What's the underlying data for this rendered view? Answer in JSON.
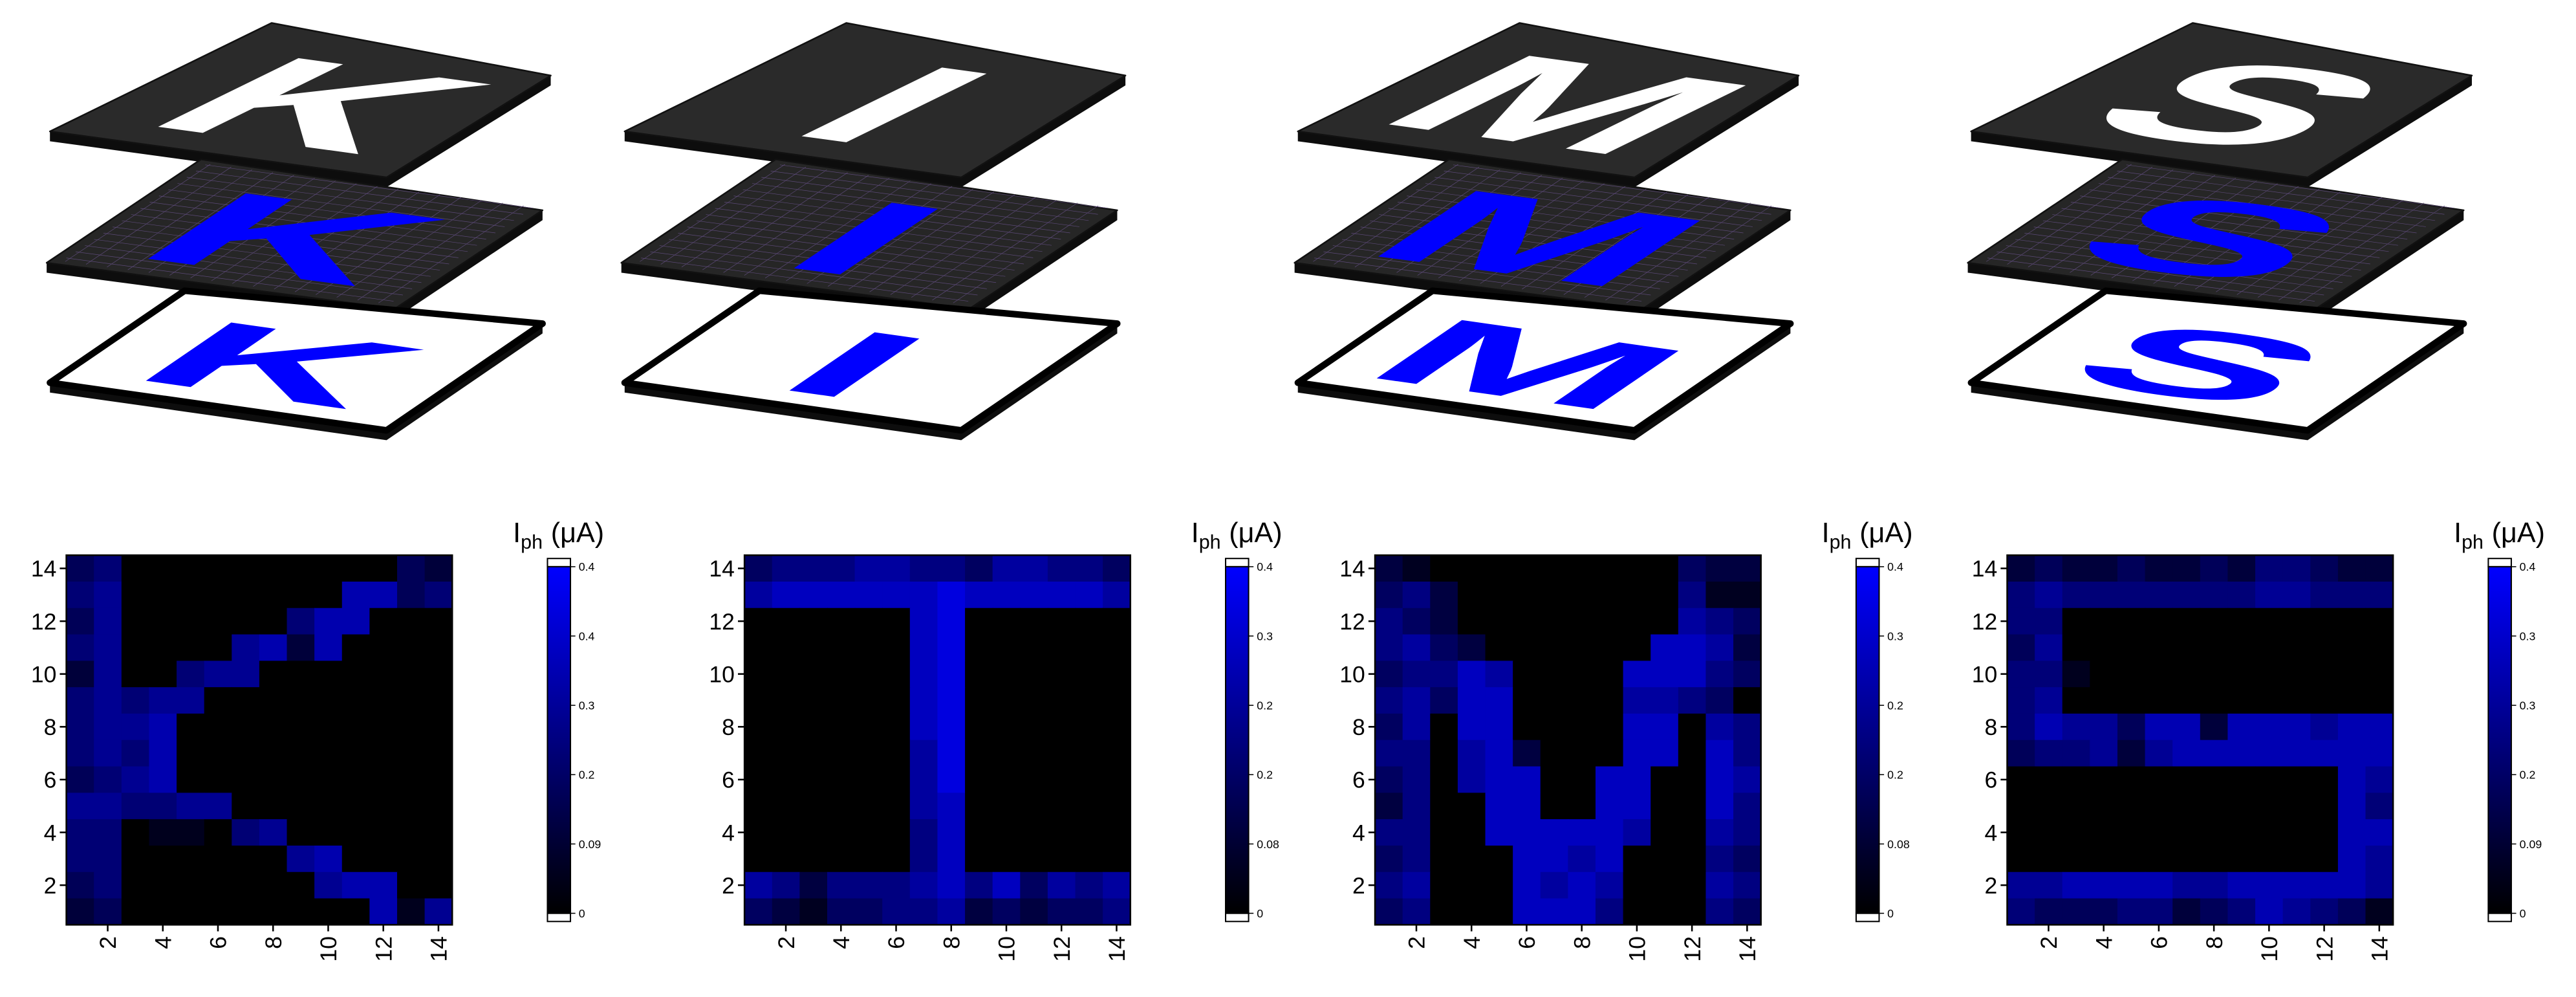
{
  "illustrations": [
    {
      "letter": "K"
    },
    {
      "letter": "I"
    },
    {
      "letter": "M"
    },
    {
      "letter": "S"
    }
  ],
  "chart_data": [
    {
      "type": "heatmap",
      "x": [
        1,
        2,
        3,
        4,
        5,
        6,
        7,
        8,
        9,
        10,
        11,
        12,
        13,
        14
      ],
      "y": [
        14,
        13,
        12,
        11,
        10,
        9,
        8,
        7,
        6,
        5,
        4,
        3,
        2,
        1
      ],
      "z": [
        [
          0.15,
          0.2,
          0,
          0,
          0,
          0,
          0,
          0,
          0,
          0,
          0,
          0,
          0.15,
          0.1
        ],
        [
          0.2,
          0.25,
          0,
          0,
          0,
          0,
          0,
          0,
          0,
          0,
          0.3,
          0.3,
          0.15,
          0.2
        ],
        [
          0.15,
          0.25,
          0,
          0,
          0,
          0,
          0,
          0,
          0.2,
          0.3,
          0.3,
          0,
          0,
          0
        ],
        [
          0.2,
          0.25,
          0,
          0,
          0,
          0,
          0.25,
          0.3,
          0.1,
          0.3,
          0,
          0,
          0,
          0
        ],
        [
          0.1,
          0.25,
          0,
          0,
          0.2,
          0.25,
          0.25,
          0,
          0,
          0,
          0,
          0,
          0,
          0
        ],
        [
          0.2,
          0.25,
          0.2,
          0.25,
          0.25,
          0,
          0,
          0,
          0,
          0,
          0,
          0,
          0,
          0
        ],
        [
          0.2,
          0.25,
          0.25,
          0.3,
          0,
          0,
          0,
          0,
          0,
          0,
          0,
          0,
          0,
          0
        ],
        [
          0.2,
          0.25,
          0.2,
          0.3,
          0,
          0,
          0,
          0,
          0,
          0,
          0,
          0,
          0,
          0
        ],
        [
          0.15,
          0.2,
          0.25,
          0.3,
          0,
          0,
          0,
          0,
          0,
          0,
          0,
          0,
          0,
          0
        ],
        [
          0.25,
          0.25,
          0.2,
          0.2,
          0.25,
          0.25,
          0,
          0,
          0,
          0,
          0,
          0,
          0,
          0
        ],
        [
          0.2,
          0.2,
          0,
          0.05,
          0.05,
          0,
          0.2,
          0.25,
          0,
          0,
          0,
          0,
          0,
          0
        ],
        [
          0.2,
          0.2,
          0,
          0,
          0,
          0,
          0,
          0,
          0.25,
          0.3,
          0,
          0,
          0,
          0
        ],
        [
          0.15,
          0.2,
          0,
          0,
          0,
          0,
          0,
          0,
          0,
          0.25,
          0.3,
          0.3,
          0,
          0
        ],
        [
          0.1,
          0.15,
          0,
          0,
          0,
          0,
          0,
          0,
          0,
          0,
          0,
          0.3,
          0.05,
          0.25
        ]
      ],
      "xlim": [
        0.5,
        14.5
      ],
      "ylim": [
        0.5,
        14.5
      ],
      "xticks": [
        2,
        4,
        6,
        8,
        10,
        12,
        14
      ],
      "yticks": [
        2,
        4,
        6,
        8,
        10,
        12,
        14
      ],
      "colorbar": {
        "label": {
          "main": "I",
          "sub": "ph",
          "unit": "(μA)"
        },
        "clim": [
          0,
          0.44
        ],
        "ticks": [
          {
            "value": 0,
            "label": "0"
          },
          {
            "value": 0.088,
            "label": "0.09"
          },
          {
            "value": 0.176,
            "label": "0.2"
          },
          {
            "value": 0.264,
            "label": "0.3"
          },
          {
            "value": 0.352,
            "label": "0.4"
          },
          {
            "value": 0.44,
            "label": "0.4"
          }
        ],
        "colormap": [
          "#000000",
          "#0000ff"
        ],
        "extend_color": "#ffffff"
      }
    },
    {
      "type": "heatmap",
      "x": [
        1,
        2,
        3,
        4,
        5,
        6,
        7,
        8,
        9,
        10,
        11,
        12,
        13,
        14
      ],
      "y": [
        14,
        13,
        12,
        11,
        10,
        9,
        8,
        7,
        6,
        5,
        4,
        3,
        2,
        1
      ],
      "z": [
        [
          0.15,
          0.2,
          0.2,
          0.2,
          0.25,
          0.25,
          0.2,
          0.2,
          0.15,
          0.25,
          0.25,
          0.2,
          0.2,
          0.15
        ],
        [
          0.25,
          0.3,
          0.3,
          0.3,
          0.3,
          0.3,
          0.3,
          0.35,
          0.3,
          0.3,
          0.3,
          0.3,
          0.3,
          0.25
        ],
        [
          0,
          0,
          0,
          0,
          0,
          0,
          0.3,
          0.35,
          0,
          0,
          0,
          0,
          0,
          0
        ],
        [
          0,
          0,
          0,
          0,
          0,
          0,
          0.3,
          0.35,
          0,
          0,
          0,
          0,
          0,
          0
        ],
        [
          0,
          0,
          0,
          0,
          0,
          0,
          0.3,
          0.35,
          0,
          0,
          0,
          0,
          0,
          0
        ],
        [
          0,
          0,
          0,
          0,
          0,
          0,
          0.3,
          0.35,
          0,
          0,
          0,
          0,
          0,
          0
        ],
        [
          0,
          0,
          0,
          0,
          0,
          0,
          0.3,
          0.35,
          0,
          0,
          0,
          0,
          0,
          0
        ],
        [
          0,
          0,
          0,
          0,
          0,
          0,
          0.25,
          0.35,
          0,
          0,
          0,
          0,
          0,
          0
        ],
        [
          0,
          0,
          0,
          0,
          0,
          0,
          0.25,
          0.35,
          0,
          0,
          0,
          0,
          0,
          0
        ],
        [
          0,
          0,
          0,
          0,
          0,
          0,
          0.25,
          0.3,
          0,
          0,
          0,
          0,
          0,
          0
        ],
        [
          0,
          0,
          0,
          0,
          0,
          0,
          0.2,
          0.3,
          0,
          0,
          0,
          0,
          0,
          0
        ],
        [
          0,
          0,
          0,
          0,
          0,
          0,
          0.2,
          0.3,
          0,
          0,
          0,
          0,
          0,
          0
        ],
        [
          0.25,
          0.2,
          0.1,
          0.2,
          0.2,
          0.2,
          0.25,
          0.3,
          0.2,
          0.3,
          0.15,
          0.25,
          0.2,
          0.25
        ],
        [
          0.15,
          0.1,
          0.05,
          0.15,
          0.15,
          0.2,
          0.2,
          0.25,
          0.1,
          0.15,
          0.1,
          0.15,
          0.15,
          0.2
        ]
      ],
      "xlim": [
        0.5,
        14.5
      ],
      "ylim": [
        0.5,
        14.5
      ],
      "xticks": [
        2,
        4,
        6,
        8,
        10,
        12,
        14
      ],
      "yticks": [
        2,
        4,
        6,
        8,
        10,
        12,
        14
      ],
      "colorbar": {
        "label": {
          "main": "I",
          "sub": "ph",
          "unit": "(μA)"
        },
        "clim": [
          0,
          0.4
        ],
        "ticks": [
          {
            "value": 0,
            "label": "0"
          },
          {
            "value": 0.08,
            "label": "0.08"
          },
          {
            "value": 0.16,
            "label": "0.2"
          },
          {
            "value": 0.24,
            "label": "0.2"
          },
          {
            "value": 0.32,
            "label": "0.3"
          },
          {
            "value": 0.4,
            "label": "0.4"
          }
        ],
        "colormap": [
          "#000000",
          "#0000ff"
        ],
        "extend_color": "#ffffff"
      }
    },
    {
      "type": "heatmap",
      "x": [
        1,
        2,
        3,
        4,
        5,
        6,
        7,
        8,
        9,
        10,
        11,
        12,
        13,
        14
      ],
      "y": [
        14,
        13,
        12,
        11,
        10,
        9,
        8,
        7,
        6,
        5,
        4,
        3,
        2,
        1
      ],
      "z": [
        [
          0.1,
          0.05,
          0,
          0,
          0,
          0,
          0,
          0,
          0,
          0,
          0,
          0.15,
          0.1,
          0.1
        ],
        [
          0.15,
          0.2,
          0.1,
          0,
          0,
          0,
          0,
          0,
          0,
          0,
          0,
          0.2,
          0.05,
          0.05
        ],
        [
          0.2,
          0.15,
          0.1,
          0,
          0,
          0,
          0,
          0,
          0,
          0,
          0,
          0.25,
          0.2,
          0.15
        ],
        [
          0.2,
          0.25,
          0.15,
          0.1,
          0,
          0,
          0,
          0,
          0,
          0,
          0.3,
          0.3,
          0.25,
          0.1
        ],
        [
          0.15,
          0.2,
          0.2,
          0.3,
          0.25,
          0,
          0,
          0,
          0,
          0.3,
          0.3,
          0.3,
          0.2,
          0.15
        ],
        [
          0.2,
          0.25,
          0.15,
          0.3,
          0.3,
          0,
          0,
          0,
          0,
          0.25,
          0.25,
          0.2,
          0.15,
          0
        ],
        [
          0.15,
          0.25,
          0,
          0.3,
          0.3,
          0,
          0,
          0,
          0,
          0.3,
          0.3,
          0,
          0.25,
          0.2
        ],
        [
          0.2,
          0.2,
          0,
          0.25,
          0.3,
          0.1,
          0,
          0,
          0,
          0.3,
          0.3,
          0,
          0.3,
          0.2
        ],
        [
          0.15,
          0.2,
          0,
          0.25,
          0.3,
          0.3,
          0,
          0,
          0.3,
          0.3,
          0,
          0,
          0.3,
          0.25
        ],
        [
          0.1,
          0.2,
          0,
          0,
          0.3,
          0.3,
          0,
          0,
          0.3,
          0.3,
          0,
          0,
          0.3,
          0.2
        ],
        [
          0.2,
          0.2,
          0,
          0,
          0.3,
          0.3,
          0.3,
          0.3,
          0.3,
          0.25,
          0,
          0,
          0.25,
          0.2
        ],
        [
          0.15,
          0.2,
          0,
          0,
          0,
          0.3,
          0.3,
          0.25,
          0.3,
          0,
          0,
          0,
          0.2,
          0.15
        ],
        [
          0.2,
          0.25,
          0,
          0,
          0,
          0.3,
          0.25,
          0.3,
          0.25,
          0,
          0,
          0,
          0.25,
          0.2
        ],
        [
          0.15,
          0.2,
          0,
          0,
          0,
          0.3,
          0.3,
          0.3,
          0.2,
          0,
          0,
          0,
          0.2,
          0.15
        ]
      ],
      "xlim": [
        0.5,
        14.5
      ],
      "ylim": [
        0.5,
        14.5
      ],
      "xticks": [
        2,
        4,
        6,
        8,
        10,
        12,
        14
      ],
      "yticks": [
        2,
        4,
        6,
        8,
        10,
        12,
        14
      ],
      "colorbar": {
        "label": {
          "main": "I",
          "sub": "ph",
          "unit": "(μA)"
        },
        "clim": [
          0,
          0.4
        ],
        "ticks": [
          {
            "value": 0,
            "label": "0"
          },
          {
            "value": 0.08,
            "label": "0.08"
          },
          {
            "value": 0.16,
            "label": "0.2"
          },
          {
            "value": 0.24,
            "label": "0.2"
          },
          {
            "value": 0.32,
            "label": "0.3"
          },
          {
            "value": 0.4,
            "label": "0.4"
          }
        ],
        "colormap": [
          "#000000",
          "#0000ff"
        ],
        "extend_color": "#ffffff"
      }
    },
    {
      "type": "heatmap",
      "x": [
        1,
        2,
        3,
        4,
        5,
        6,
        7,
        8,
        9,
        10,
        11,
        12,
        13,
        14
      ],
      "y": [
        14,
        13,
        12,
        11,
        10,
        9,
        8,
        7,
        6,
        5,
        4,
        3,
        2,
        1
      ],
      "z": [
        [
          0.1,
          0.15,
          0.1,
          0.1,
          0.15,
          0.1,
          0.1,
          0.15,
          0.1,
          0.2,
          0.2,
          0.15,
          0.1,
          0.1
        ],
        [
          0.2,
          0.25,
          0.2,
          0.2,
          0.2,
          0.2,
          0.2,
          0.2,
          0.2,
          0.25,
          0.25,
          0.2,
          0.2,
          0.2
        ],
        [
          0.2,
          0.2,
          0,
          0,
          0,
          0,
          0,
          0,
          0,
          0,
          0,
          0,
          0,
          0
        ],
        [
          0.15,
          0.25,
          0,
          0,
          0,
          0,
          0,
          0,
          0,
          0,
          0,
          0,
          0,
          0
        ],
        [
          0.2,
          0.2,
          0.05,
          0,
          0,
          0,
          0,
          0,
          0,
          0,
          0,
          0,
          0,
          0
        ],
        [
          0.2,
          0.25,
          0,
          0,
          0,
          0,
          0,
          0,
          0,
          0,
          0,
          0,
          0,
          0
        ],
        [
          0.2,
          0.3,
          0.25,
          0.25,
          0.15,
          0.3,
          0.3,
          0.1,
          0.3,
          0.3,
          0.3,
          0.25,
          0.3,
          0.3
        ],
        [
          0.15,
          0.2,
          0.2,
          0.25,
          0.1,
          0.25,
          0.3,
          0.3,
          0.3,
          0.3,
          0.3,
          0.3,
          0.3,
          0.3
        ],
        [
          0,
          0,
          0,
          0,
          0,
          0,
          0,
          0,
          0,
          0,
          0,
          0,
          0.3,
          0.25
        ],
        [
          0,
          0,
          0,
          0,
          0,
          0,
          0,
          0,
          0,
          0,
          0,
          0,
          0.3,
          0.2
        ],
        [
          0,
          0,
          0,
          0,
          0,
          0,
          0,
          0,
          0,
          0,
          0,
          0,
          0.3,
          0.3
        ],
        [
          0,
          0,
          0,
          0,
          0,
          0,
          0,
          0,
          0,
          0,
          0,
          0,
          0.3,
          0.25
        ],
        [
          0.25,
          0.25,
          0.3,
          0.3,
          0.3,
          0.3,
          0.25,
          0.25,
          0.3,
          0.3,
          0.3,
          0.3,
          0.3,
          0.25
        ],
        [
          0.2,
          0.15,
          0.15,
          0.15,
          0.2,
          0.2,
          0.1,
          0.15,
          0.2,
          0.3,
          0.25,
          0.2,
          0.15,
          0.05
        ]
      ],
      "xlim": [
        0.5,
        14.5
      ],
      "ylim": [
        0.5,
        14.5
      ],
      "xticks": [
        2,
        4,
        6,
        8,
        10,
        12,
        14
      ],
      "yticks": [
        2,
        4,
        6,
        8,
        10,
        12,
        14
      ],
      "colorbar": {
        "label": {
          "main": "I",
          "sub": "ph",
          "unit": "(μA)"
        },
        "clim": [
          0,
          0.43
        ],
        "ticks": [
          {
            "value": 0,
            "label": "0"
          },
          {
            "value": 0.086,
            "label": "0.09"
          },
          {
            "value": 0.172,
            "label": "0.2"
          },
          {
            "value": 0.258,
            "label": "0.3"
          },
          {
            "value": 0.344,
            "label": "0.3"
          },
          {
            "value": 0.43,
            "label": "0.4"
          }
        ],
        "colormap": [
          "#000000",
          "#0000ff"
        ],
        "extend_color": "#ffffff"
      }
    }
  ]
}
